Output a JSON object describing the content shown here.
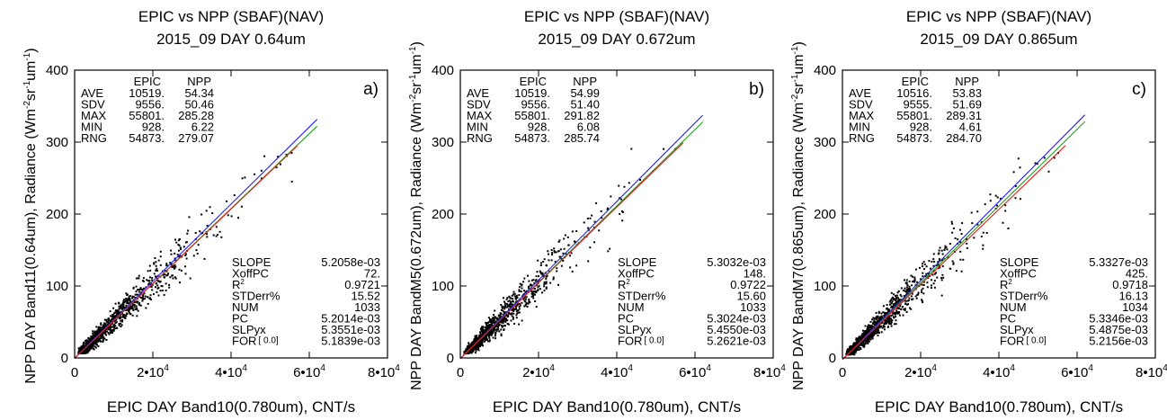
{
  "chart_data": [
    {
      "type": "scatter",
      "panel_label": "a)",
      "title": "EPIC vs NPP (SBAF)(NAV)",
      "subtitle": "2015_09   DAY  0.64um",
      "xlabel": "EPIC DAY Band10(0.780um), CNT/s",
      "ylabel_prefix": "NPP DAY Band11(0.64um), Radiance (Wm",
      "ylabel_sup1": "-2",
      "ylabel_mid": "sr",
      "ylabel_sup2": "-1",
      "ylabel_mid2": "um",
      "ylabel_sup3": "-1",
      "ylabel_suffix": ")",
      "xlim": [
        0,
        80000
      ],
      "ylim": [
        0,
        400
      ],
      "xticks": [
        {
          "value": 0,
          "label": "0"
        },
        {
          "value": 20000,
          "label": "2•10",
          "exp": "4"
        },
        {
          "value": 40000,
          "label": "4•10",
          "exp": "4"
        },
        {
          "value": 60000,
          "label": "6•10",
          "exp": "4"
        },
        {
          "value": 80000,
          "label": "8•10",
          "exp": "4"
        }
      ],
      "yticks": [
        {
          "value": 0,
          "label": "0"
        },
        {
          "value": 100,
          "label": "100"
        },
        {
          "value": 200,
          "label": "200"
        },
        {
          "value": 300,
          "label": "300"
        },
        {
          "value": 400,
          "label": "400"
        }
      ],
      "stats": {
        "headers": [
          "EPIC",
          "NPP"
        ],
        "rows": [
          {
            "label": "AVE",
            "epic": "10519.",
            "npp": "54.34"
          },
          {
            "label": "SDV",
            "epic": "9556.",
            "npp": "50.46"
          },
          {
            "label": "MAX",
            "epic": "55801.",
            "npp": "285.28"
          },
          {
            "label": "MIN",
            "epic": "928.",
            "npp": "6.22"
          },
          {
            "label": "RNG",
            "epic": "54873.",
            "npp": "279.07"
          }
        ]
      },
      "regression": {
        "SLOPE": "5.2058e-03",
        "XoffPC": "72.",
        "R2_label": "R",
        "R2_sup": "2",
        "R2": "0.9721",
        "STDerr_label": "STDerr%",
        "STDerr": "15.52",
        "NUM": "1033",
        "PC": "5.2014e-03",
        "SLPyx": "5.3551e-03",
        "FOR_label": "FOR",
        "FOR_bracket": "[ 0.0]",
        "FOR": "5.1839e-03"
      },
      "series": [
        {
          "name": "PC",
          "color": "#1aa31a",
          "slope": 0.0052014,
          "xoff": 72,
          "x_range": [
            0,
            62000
          ]
        },
        {
          "name": "SLPyx",
          "color": "#2222ee",
          "slope": 0.0053551,
          "xoff": 72,
          "x_range": [
            0,
            62000
          ]
        },
        {
          "name": "FOR",
          "color": "#e81b1b",
          "slope": 0.0051839,
          "xoff": 72,
          "x_range": [
            0,
            57000
          ]
        }
      ],
      "scatter_summary": {
        "n": 1033,
        "x_min": 928,
        "x_max": 55801,
        "y_min": 6.22,
        "y_max": 285.28,
        "x_mean": 10519,
        "y_mean": 54.34
      }
    },
    {
      "type": "scatter",
      "panel_label": "b)",
      "title": "EPIC vs NPP (SBAF)(NAV)",
      "subtitle": "2015_09   DAY  0.672um",
      "xlabel": "EPIC DAY Band10(0.780um), CNT/s",
      "ylabel_prefix": "NPP DAY BandM5(0.672um), Radiance (Wm",
      "ylabel_sup1": "-2",
      "ylabel_mid": "sr",
      "ylabel_sup2": "-1",
      "ylabel_mid2": "um",
      "ylabel_sup3": "-1",
      "ylabel_suffix": ")",
      "xlim": [
        0,
        80000
      ],
      "ylim": [
        0,
        400
      ],
      "xticks": [
        {
          "value": 0,
          "label": "0"
        },
        {
          "value": 20000,
          "label": "2•10",
          "exp": "4"
        },
        {
          "value": 40000,
          "label": "4•10",
          "exp": "4"
        },
        {
          "value": 60000,
          "label": "6•10",
          "exp": "4"
        },
        {
          "value": 80000,
          "label": "8•10",
          "exp": "4"
        }
      ],
      "yticks": [
        {
          "value": 0,
          "label": "0"
        },
        {
          "value": 100,
          "label": "100"
        },
        {
          "value": 200,
          "label": "200"
        },
        {
          "value": 300,
          "label": "300"
        },
        {
          "value": 400,
          "label": "400"
        }
      ],
      "stats": {
        "headers": [
          "EPIC",
          "NPP"
        ],
        "rows": [
          {
            "label": "AVE",
            "epic": "10519.",
            "npp": "54.99"
          },
          {
            "label": "SDV",
            "epic": "9556.",
            "npp": "51.40"
          },
          {
            "label": "MAX",
            "epic": "55801.",
            "npp": "291.82"
          },
          {
            "label": "MIN",
            "epic": "928.",
            "npp": "6.08"
          },
          {
            "label": "RNG",
            "epic": "54873.",
            "npp": "285.74"
          }
        ]
      },
      "regression": {
        "SLOPE": "5.3032e-03",
        "XoffPC": "148.",
        "R2_label": "R",
        "R2_sup": "2",
        "R2": "0.9722",
        "STDerr_label": "STDerr%",
        "STDerr": "15.60",
        "NUM": "1033",
        "PC": "5.3024e-03",
        "SLPyx": "5.4550e-03",
        "FOR_label": "FOR",
        "FOR_bracket": "[ 0.0]",
        "FOR": "5.2621e-03"
      },
      "series": [
        {
          "name": "PC",
          "color": "#1aa31a",
          "slope": 0.0053024,
          "xoff": 148,
          "x_range": [
            0,
            62000
          ]
        },
        {
          "name": "SLPyx",
          "color": "#2222ee",
          "slope": 0.005455,
          "xoff": 148,
          "x_range": [
            0,
            62000
          ]
        },
        {
          "name": "FOR",
          "color": "#e81b1b",
          "slope": 0.0052621,
          "xoff": 148,
          "x_range": [
            0,
            57000
          ]
        }
      ],
      "scatter_summary": {
        "n": 1033,
        "x_min": 928,
        "x_max": 55801,
        "y_min": 6.08,
        "y_max": 291.82,
        "x_mean": 10519,
        "y_mean": 54.99
      }
    },
    {
      "type": "scatter",
      "panel_label": "c)",
      "title": "EPIC vs NPP (SBAF)(NAV)",
      "subtitle": "2015_09   DAY  0.865um",
      "xlabel": "EPIC DAY Band10(0.780um), CNT/s",
      "ylabel_prefix": "NPP DAY BandM7(0.865um), Radiance (Wm",
      "ylabel_sup1": "-2",
      "ylabel_mid": "sr",
      "ylabel_sup2": "-1",
      "ylabel_mid2": "um",
      "ylabel_sup3": "-1",
      "ylabel_suffix": ")",
      "xlim": [
        0,
        80000
      ],
      "ylim": [
        0,
        400
      ],
      "xticks": [
        {
          "value": 0,
          "label": "0"
        },
        {
          "value": 20000,
          "label": "2•10",
          "exp": "4"
        },
        {
          "value": 40000,
          "label": "4•10",
          "exp": "4"
        },
        {
          "value": 60000,
          "label": "6•10",
          "exp": "4"
        },
        {
          "value": 80000,
          "label": "8•10",
          "exp": "4"
        }
      ],
      "yticks": [
        {
          "value": 0,
          "label": "0"
        },
        {
          "value": 100,
          "label": "100"
        },
        {
          "value": 200,
          "label": "200"
        },
        {
          "value": 300,
          "label": "300"
        },
        {
          "value": 400,
          "label": "400"
        }
      ],
      "stats": {
        "headers": [
          "EPIC",
          "NPP"
        ],
        "rows": [
          {
            "label": "AVE",
            "epic": "10516.",
            "npp": "53.83"
          },
          {
            "label": "SDV",
            "epic": "9555.",
            "npp": "51.69"
          },
          {
            "label": "MAX",
            "epic": "55801.",
            "npp": "289.31"
          },
          {
            "label": "MIN",
            "epic": "928.",
            "npp": "4.61"
          },
          {
            "label": "RNG",
            "epic": "54873.",
            "npp": "284.70"
          }
        ]
      },
      "regression": {
        "SLOPE": "5.3327e-03",
        "XoffPC": "425.",
        "R2_label": "R",
        "R2_sup": "2",
        "R2": "0.9718",
        "STDerr_label": "STDerr%",
        "STDerr": "16.13",
        "NUM": "1034",
        "PC": "5.3346e-03",
        "SLPyx": "5.4875e-03",
        "FOR_label": "FOR",
        "FOR_bracket": "[ 0.0]",
        "FOR": "5.2156e-03"
      },
      "series": [
        {
          "name": "PC",
          "color": "#1aa31a",
          "slope": 0.0053346,
          "xoff": 425,
          "x_range": [
            0,
            62000
          ]
        },
        {
          "name": "SLPyx",
          "color": "#2222ee",
          "slope": 0.0054875,
          "xoff": 425,
          "x_range": [
            0,
            62000
          ]
        },
        {
          "name": "FOR",
          "color": "#e81b1b",
          "slope": 0.0052156,
          "xoff": 425,
          "x_range": [
            0,
            57000
          ]
        }
      ],
      "scatter_summary": {
        "n": 1034,
        "x_min": 928,
        "x_max": 55801,
        "y_min": 4.61,
        "y_max": 289.31,
        "x_mean": 10516,
        "y_mean": 53.83
      }
    }
  ]
}
